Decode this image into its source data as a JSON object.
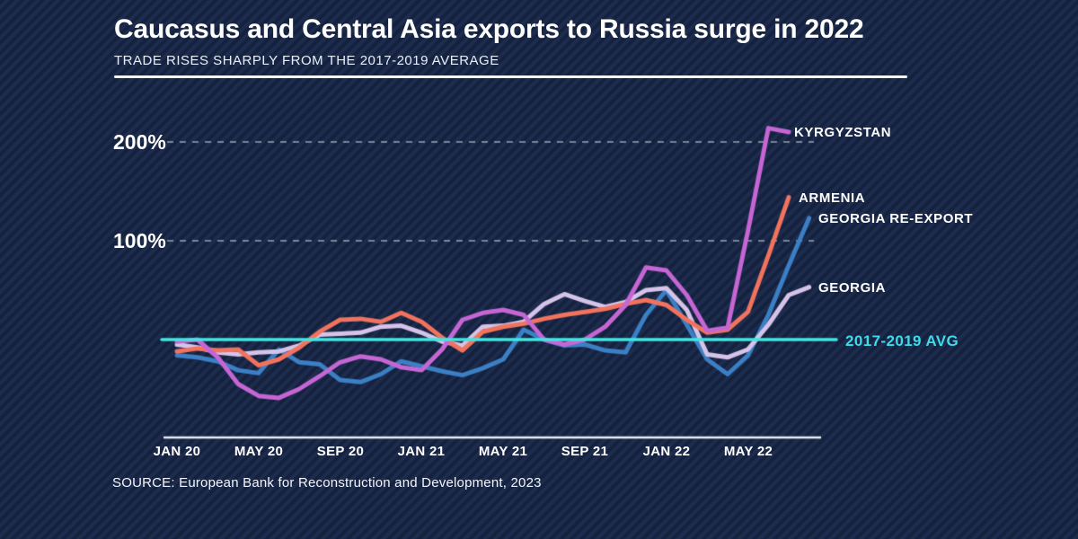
{
  "header": {
    "title": "Caucasus and Central Asia exports to Russia surge in 2022",
    "subtitle": "TRADE RISES SHARPLY FROM THE 2017-2019 AVERAGE"
  },
  "footer": {
    "source": "SOURCE: European Bank for Reconstruction and Development, 2023"
  },
  "colors": {
    "background": "#182642",
    "background_stripe": "#1d2c4e",
    "text": "#ffffff",
    "gridline": "rgba(200,210,228,0.55)",
    "axis_line": "#e9eef6",
    "average_line": "#3fe6e0",
    "average_label": "#3cdcea"
  },
  "chart_data": {
    "type": "line",
    "title": "Caucasus and Central Asia exports to Russia surge in 2022",
    "subtitle": "TRADE RISES SHARPLY FROM THE 2017-2019 AVERAGE",
    "x_unit": "month",
    "x_range": [
      "JAN 20",
      "AUG 22"
    ],
    "x_tick_labels": [
      "JAN 20",
      "MAY 20",
      "SEP 20",
      "JAN 21",
      "MAY 21",
      "SEP 21",
      "JAN 22",
      "MAY 22"
    ],
    "y_tick_labels": [
      "100%",
      "200%"
    ],
    "y_gridlines_pct": [
      100,
      200
    ],
    "ylim_pct": [
      -75,
      240
    ],
    "grid": "dashed horizontal at 100% and 200%",
    "legend_position": "line-end labels, right side",
    "baseline": {
      "label": "2017-2019 AVG",
      "value_pct": 0
    },
    "series": [
      {
        "name": "KYRGYZSTAN",
        "color": "#c566d4",
        "values_pct": [
          -2,
          0,
          -18,
          -45,
          -57,
          -59,
          -50,
          -37,
          -23,
          -17,
          -20,
          -28,
          -31,
          -10,
          20,
          27,
          30,
          25,
          0,
          -5,
          0,
          13,
          35,
          73,
          70,
          45,
          9,
          12,
          110,
          214,
          210,
          null
        ]
      },
      {
        "name": "ARMENIA",
        "color": "#f1735e",
        "values_pct": [
          -12,
          -9,
          -11,
          -10,
          -26,
          -20,
          -8,
          8,
          20,
          21,
          18,
          27,
          18,
          2,
          -11,
          8,
          13,
          16,
          21,
          25,
          28,
          31,
          36,
          40,
          35,
          20,
          7,
          10,
          28,
          85,
          144,
          null
        ]
      },
      {
        "name": "GEORGIA RE-EXPORT",
        "color": "#3b7fc4",
        "values_pct": [
          -16,
          -18,
          -22,
          -31,
          -34,
          -10,
          -23,
          -25,
          -41,
          -43,
          -35,
          -22,
          -27,
          -32,
          -36,
          -29,
          -20,
          10,
          0,
          -6,
          -5,
          -11,
          -13,
          25,
          50,
          15,
          -20,
          -35,
          -16,
          25,
          75,
          123
        ]
      },
      {
        "name": "GEORGIA",
        "color": "#d5c3e8",
        "values_pct": [
          -5,
          -8,
          -13,
          -15,
          -13,
          -12,
          -6,
          5,
          6,
          7,
          13,
          14,
          7,
          -2,
          -6,
          13,
          14,
          18,
          36,
          46,
          39,
          33,
          38,
          50,
          52,
          30,
          -15,
          -18,
          -10,
          15,
          45,
          53
        ]
      }
    ]
  }
}
